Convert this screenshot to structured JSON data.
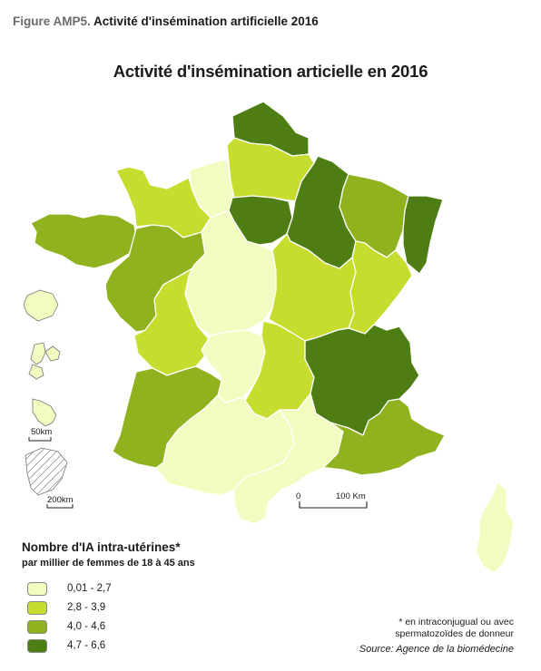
{
  "figure": {
    "number": "Figure AMP5.",
    "caption": "Activité d'insémination artificielle 2016"
  },
  "map": {
    "title": "Activité d'insémination articielle en 2016"
  },
  "scale": {
    "zero": "0",
    "distance": "100 Km"
  },
  "inset_scales": {
    "small": "50km",
    "large": "200km"
  },
  "legend": {
    "title": "Nombre d'IA intra-utérines*",
    "subtitle": "par millier de femmes de 18 à 45 ans",
    "classes": [
      {
        "label": "0,01 - 2,7",
        "color": "#f2fcc0"
      },
      {
        "label": "2,8 - 3,9",
        "color": "#c6dd30"
      },
      {
        "label": "4,0 - 4,6",
        "color": "#8fb21e"
      },
      {
        "label": "4,7 - 6,6",
        "color": "#4e7d14"
      }
    ]
  },
  "regions": [
    {
      "id": "nord-pas-de-calais",
      "class": 3
    },
    {
      "id": "picardie",
      "class": 1
    },
    {
      "id": "haute-normandie",
      "class": 0
    },
    {
      "id": "basse-normandie",
      "class": 1
    },
    {
      "id": "bretagne",
      "class": 2
    },
    {
      "id": "pays-de-la-loire",
      "class": 2
    },
    {
      "id": "centre",
      "class": 0
    },
    {
      "id": "ile-de-france",
      "class": 3
    },
    {
      "id": "champagne-ardenne",
      "class": 3
    },
    {
      "id": "lorraine",
      "class": 2
    },
    {
      "id": "alsace",
      "class": 3
    },
    {
      "id": "bourgogne",
      "class": 1
    },
    {
      "id": "franche-comte",
      "class": 1
    },
    {
      "id": "poitou-charentes",
      "class": 1
    },
    {
      "id": "limousin",
      "class": 0
    },
    {
      "id": "auvergne",
      "class": 1
    },
    {
      "id": "rhone-alpes",
      "class": 3
    },
    {
      "id": "aquitaine",
      "class": 2
    },
    {
      "id": "midi-pyrenees",
      "class": 0
    },
    {
      "id": "languedoc-roussillon",
      "class": 0
    },
    {
      "id": "paca",
      "class": 2
    },
    {
      "id": "corse",
      "class": 0
    },
    {
      "id": "reunion",
      "class": 0
    },
    {
      "id": "guadeloupe",
      "class": 0
    },
    {
      "id": "martinique",
      "class": 0
    },
    {
      "id": "guyane",
      "class": -1
    }
  ],
  "footnote": {
    "line1": "* en intraconjugual ou avec",
    "line2": "spermatozoïdes de donneur"
  },
  "source": "Source: Agence de la biomédecine"
}
